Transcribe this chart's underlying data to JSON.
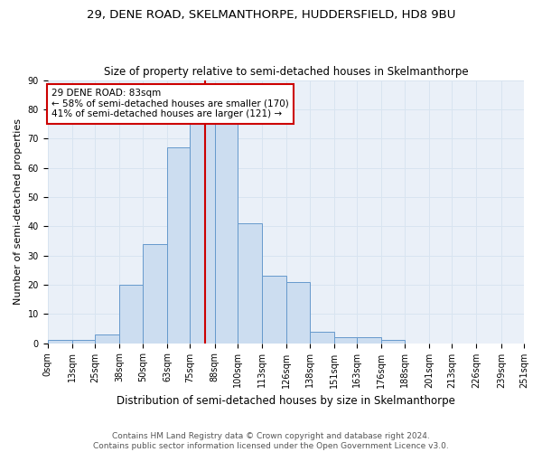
{
  "title": "29, DENE ROAD, SKELMANTHORPE, HUDDERSFIELD, HD8 9BU",
  "subtitle": "Size of property relative to semi-detached houses in Skelmanthorpe",
  "xlabel": "Distribution of semi-detached houses by size in Skelmanthorpe",
  "ylabel": "Number of semi-detached properties",
  "bin_edges": [
    0,
    13,
    25,
    38,
    50,
    63,
    75,
    88,
    100,
    113,
    126,
    138,
    151,
    163,
    176,
    188,
    201,
    213,
    226,
    239,
    251
  ],
  "bin_counts": [
    1,
    1,
    3,
    20,
    34,
    67,
    75,
    75,
    41,
    23,
    21,
    4,
    2,
    2,
    1,
    0,
    0,
    0,
    0,
    0
  ],
  "bar_color": "#ccddf0",
  "bar_edgecolor": "#6699cc",
  "red_line_x": 83,
  "annotation_text": "29 DENE ROAD: 83sqm\n← 58% of semi-detached houses are smaller (170)\n41% of semi-detached houses are larger (121) →",
  "annotation_box_color": "#ffffff",
  "annotation_box_edgecolor": "#cc0000",
  "red_line_color": "#cc0000",
  "ylim": [
    0,
    90
  ],
  "yticks": [
    0,
    10,
    20,
    30,
    40,
    50,
    60,
    70,
    80,
    90
  ],
  "tick_labels": [
    "0sqm",
    "13sqm",
    "25sqm",
    "38sqm",
    "50sqm",
    "63sqm",
    "75sqm",
    "88sqm",
    "100sqm",
    "113sqm",
    "126sqm",
    "138sqm",
    "151sqm",
    "163sqm",
    "176sqm",
    "188sqm",
    "201sqm",
    "213sqm",
    "226sqm",
    "239sqm",
    "251sqm"
  ],
  "footer_text": "Contains HM Land Registry data © Crown copyright and database right 2024.\nContains public sector information licensed under the Open Government Licence v3.0.",
  "title_fontsize": 9.5,
  "subtitle_fontsize": 8.5,
  "xlabel_fontsize": 8.5,
  "ylabel_fontsize": 8,
  "tick_fontsize": 7,
  "footer_fontsize": 6.5,
  "grid_color": "#d8e4f0",
  "background_color": "#ffffff",
  "plot_bg_color": "#eaf0f8"
}
